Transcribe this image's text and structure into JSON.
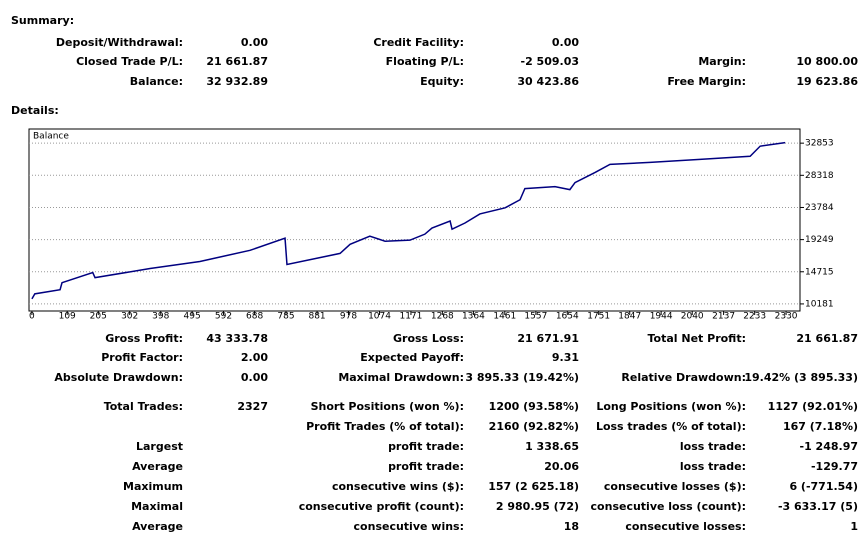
{
  "summary": {
    "title": "Summary:",
    "rows": [
      [
        {
          "label": "Deposit/Withdrawal:",
          "value": "0.00"
        },
        {
          "label": "Credit Facility:",
          "value": "0.00"
        },
        null
      ],
      [
        {
          "label": "Closed Trade P/L:",
          "value": "21 661.87"
        },
        {
          "label": "Floating P/L:",
          "value": "-2 509.03"
        },
        {
          "label": "Margin:",
          "value": "10 800.00"
        }
      ],
      [
        {
          "label": "Balance:",
          "value": "32 932.89"
        },
        {
          "label": "Equity:",
          "value": "30 423.86"
        },
        {
          "label": "Free Margin:",
          "value": "19 623.86"
        }
      ]
    ]
  },
  "details": {
    "title": "Details:",
    "rows": [
      [
        {
          "label": "Gross Profit:",
          "value": "43 333.78"
        },
        {
          "label": "Gross Loss:",
          "value": "21 671.91"
        },
        {
          "label": "Total Net Profit:",
          "value": "21 661.87"
        }
      ],
      [
        {
          "label": "Profit Factor:",
          "value": "2.00"
        },
        {
          "label": "Expected Payoff:",
          "value": "9.31"
        },
        null
      ],
      [
        {
          "label": "Absolute Drawdown:",
          "value": "0.00"
        },
        {
          "label": "Maximal Drawdown:",
          "value": "3 895.33 (19.42%)"
        },
        {
          "label": "Relative Drawdown:",
          "value": "19.42% (3 895.33)"
        }
      ],
      [
        {
          "label": "Total Trades:",
          "value": "2327"
        },
        {
          "label": "Short Positions (won %):",
          "value": "1200 (93.58%)"
        },
        {
          "label": "Long Positions (won %):",
          "value": "1127 (92.01%)"
        }
      ],
      [
        null,
        {
          "label": "Profit Trades (% of total):",
          "value": "2160 (92.82%)"
        },
        {
          "label": "Loss trades (% of total):",
          "value": "167 (7.18%)"
        }
      ],
      [
        {
          "label": "Largest"
        },
        {
          "label": "profit trade:",
          "value": "1 338.65"
        },
        {
          "label": "loss trade:",
          "value": "-1 248.97"
        }
      ],
      [
        {
          "label": "Average"
        },
        {
          "label": "profit trade:",
          "value": "20.06"
        },
        {
          "label": "loss trade:",
          "value": "-129.77"
        }
      ],
      [
        {
          "label": "Maximum"
        },
        {
          "label": "consecutive wins ($):",
          "value": "157 (2 625.18)"
        },
        {
          "label": "consecutive losses ($):",
          "value": "6 (-771.54)"
        }
      ],
      [
        {
          "label": "Maximal"
        },
        {
          "label": "consecutive profit (count):",
          "value": "2 980.95 (72)"
        },
        {
          "label": "consecutive loss (count):",
          "value": "-3 633.17 (5)"
        }
      ],
      [
        {
          "label": "Average"
        },
        {
          "label": "consecutive wins:",
          "value": "18"
        },
        {
          "label": "consecutive losses:",
          "value": "1"
        }
      ]
    ]
  },
  "chart_data": {
    "type": "line",
    "x": [
      0,
      9,
      87,
      93,
      188,
      195,
      365,
      519,
      674,
      782,
      788,
      952,
      983,
      1044,
      1091,
      1168,
      1214,
      1236,
      1292,
      1298,
      1338,
      1384,
      1462,
      1508,
      1523,
      1616,
      1662,
      1678,
      1740,
      1786,
      1910,
      2064,
      2219,
      2250,
      2327
    ],
    "series": [
      {
        "name": "Balance",
        "color": "#000080",
        "values": [
          10900,
          11600,
          12180,
          13180,
          14600,
          13890,
          15170,
          16170,
          17740,
          19450,
          15740,
          17310,
          18590,
          19740,
          19020,
          19170,
          20020,
          20880,
          21870,
          20730,
          21590,
          22870,
          23730,
          24870,
          26440,
          26720,
          26300,
          27290,
          28720,
          29860,
          30140,
          30570,
          31000,
          32430,
          32930
        ]
      }
    ],
    "xlim": [
      -9,
      2373
    ],
    "ylim": [
      9183,
      34849
    ],
    "xticks": [
      0,
      109,
      205,
      302,
      398,
      495,
      592,
      688,
      785,
      881,
      978,
      1074,
      1171,
      1268,
      1364,
      1461,
      1557,
      1654,
      1751,
      1847,
      1944,
      2040,
      2137,
      2233,
      2330
    ],
    "yticks": [
      10181,
      14715,
      19249,
      23784,
      28318,
      32853
    ],
    "grid": true
  }
}
